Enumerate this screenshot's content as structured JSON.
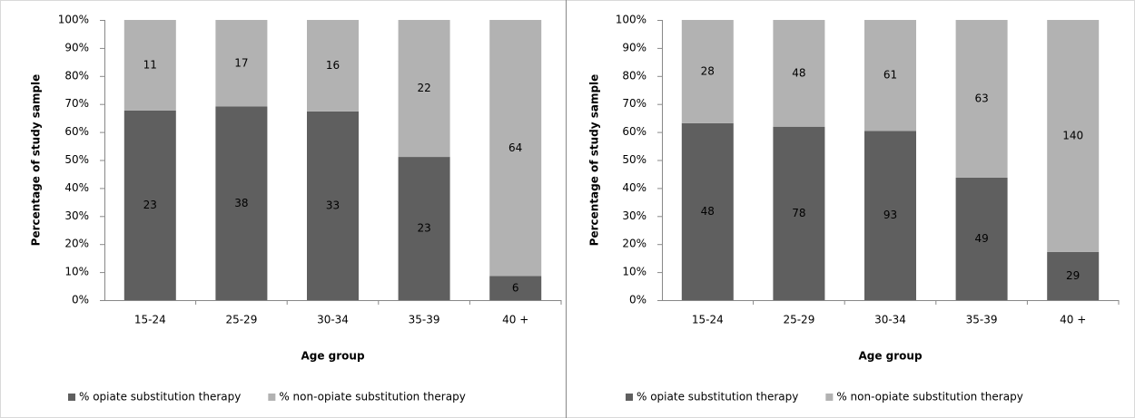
{
  "chart_data": [
    {
      "type": "bar",
      "stacking": "percent",
      "x_label": "Age group",
      "y_label": "Percentage of study sample",
      "categories": [
        "15-24",
        "25-29",
        "30-34",
        "35-39",
        "40 +"
      ],
      "series": [
        {
          "name": "% opiate substitution therapy",
          "color": "#5f5f5f",
          "values": [
            23,
            38,
            33,
            23,
            6
          ]
        },
        {
          "name": "% non-opiate substitution therapy",
          "color": "#b2b2b2",
          "values": [
            11,
            17,
            16,
            22,
            64
          ]
        }
      ],
      "ylim": [
        0,
        100
      ],
      "yticks": [
        {
          "value": 0,
          "label": "0%"
        },
        {
          "value": 10,
          "label": "10%"
        },
        {
          "value": 20,
          "label": "20%"
        },
        {
          "value": 30,
          "label": "30%"
        },
        {
          "value": 40,
          "label": "40%"
        },
        {
          "value": 50,
          "label": "50%"
        },
        {
          "value": 60,
          "label": "60%"
        },
        {
          "value": 70,
          "label": "70%"
        },
        {
          "value": 80,
          "label": "80%"
        },
        {
          "value": 90,
          "label": "90%"
        },
        {
          "value": 100,
          "label": "100%"
        }
      ]
    },
    {
      "type": "bar",
      "stacking": "percent",
      "x_label": "Age group",
      "y_label": "Percentage of study sample",
      "categories": [
        "15-24",
        "25-29",
        "30-34",
        "35-39",
        "40 +"
      ],
      "series": [
        {
          "name": "% opiate substitution therapy",
          "color": "#5f5f5f",
          "values": [
            48,
            78,
            93,
            49,
            29
          ]
        },
        {
          "name": "% non-opiate substitution therapy",
          "color": "#b2b2b2",
          "values": [
            28,
            48,
            61,
            63,
            140
          ]
        }
      ],
      "ylim": [
        0,
        100
      ],
      "yticks": [
        {
          "value": 0,
          "label": "0%"
        },
        {
          "value": 10,
          "label": "10%"
        },
        {
          "value": 20,
          "label": "20%"
        },
        {
          "value": 30,
          "label": "30%"
        },
        {
          "value": 40,
          "label": "40%"
        },
        {
          "value": 50,
          "label": "50%"
        },
        {
          "value": 60,
          "label": "60%"
        },
        {
          "value": 70,
          "label": "70%"
        },
        {
          "value": 80,
          "label": "80%"
        },
        {
          "value": 90,
          "label": "90%"
        },
        {
          "value": 100,
          "label": "100%"
        }
      ]
    }
  ]
}
